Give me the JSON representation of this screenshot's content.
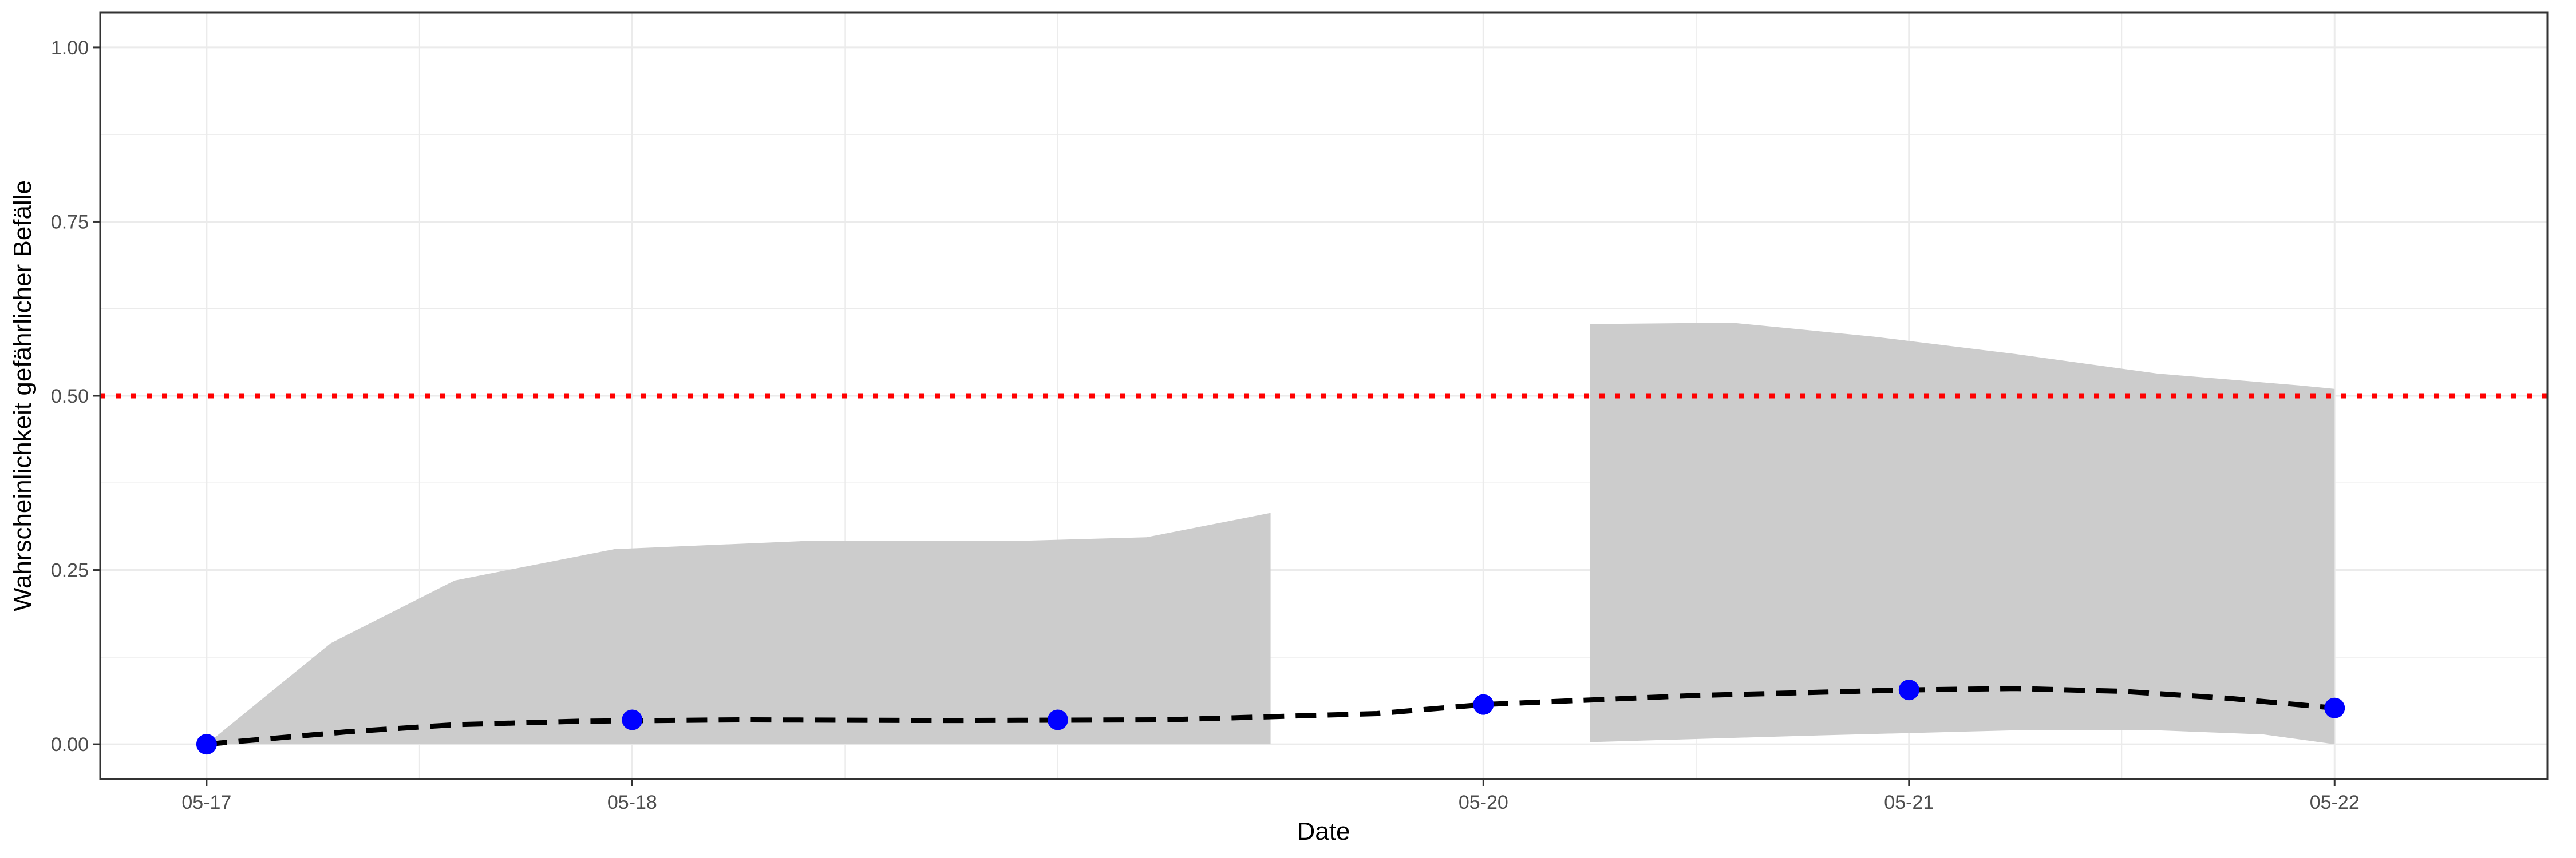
{
  "chart_data": {
    "type": "line",
    "title": "",
    "xlabel": "Date",
    "ylabel": "Wahrscheinlichkeit gefährlicher Befälle",
    "xlim": [
      "2023-05-16T18:00",
      "2023-05-22T12:00"
    ],
    "ylim": [
      -0.05,
      1.05
    ],
    "x_ticks": [
      {
        "x": "2023-05-17",
        "label": "05-17"
      },
      {
        "x": "2023-05-18",
        "label": "05-18"
      },
      {
        "x": "2023-05-20",
        "label": "05-20"
      },
      {
        "x": "2023-05-21",
        "label": "05-21"
      },
      {
        "x": "2023-05-22",
        "label": "05-22"
      }
    ],
    "x_minor_grid": [
      "2023-05-17T12:00",
      "2023-05-18T12:00",
      "2023-05-19T00:00",
      "2023-05-20T12:00",
      "2023-05-21T12:00"
    ],
    "y_ticks": [
      {
        "y": 0.0,
        "label": "0.00"
      },
      {
        "y": 0.25,
        "label": "0.25"
      },
      {
        "y": 0.5,
        "label": "0.50"
      },
      {
        "y": 0.75,
        "label": "0.75"
      },
      {
        "y": 1.0,
        "label": "1.00"
      }
    ],
    "y_minor_grid": [
      0.125,
      0.375,
      0.625,
      0.875
    ],
    "grid": true,
    "colors": {
      "points": "#0000ff",
      "smooth_line": "#000000",
      "ribbon": "#cccccc",
      "threshold": "#ff0000",
      "grid": "#ebebeb",
      "panel_border": "#333333"
    },
    "points": [
      {
        "x": "2023-05-17",
        "y": 0.0
      },
      {
        "x": "2023-05-18",
        "y": 0.035
      },
      {
        "x": "2023-05-19",
        "y": 0.035
      },
      {
        "x": "2023-05-20",
        "y": 0.057
      },
      {
        "x": "2023-05-21",
        "y": 0.078
      },
      {
        "x": "2023-05-22",
        "y": 0.052
      }
    ],
    "smooth_line": [
      {
        "x": "2023-05-17T00:00",
        "y": 0.0
      },
      {
        "x": "2023-05-17T08:00",
        "y": 0.018
      },
      {
        "x": "2023-05-17T14:00",
        "y": 0.028
      },
      {
        "x": "2023-05-17T21:00",
        "y": 0.033
      },
      {
        "x": "2023-05-18T06:00",
        "y": 0.035
      },
      {
        "x": "2023-05-18T18:00",
        "y": 0.034
      },
      {
        "x": "2023-05-19T06:00",
        "y": 0.035
      },
      {
        "x": "2023-05-19T18:00",
        "y": 0.044
      },
      {
        "x": "2023-05-20T00:00",
        "y": 0.057
      },
      {
        "x": "2023-05-20T12:00",
        "y": 0.07
      },
      {
        "x": "2023-05-21T00:00",
        "y": 0.078
      },
      {
        "x": "2023-05-21T06:00",
        "y": 0.08
      },
      {
        "x": "2023-05-21T12:00",
        "y": 0.076
      },
      {
        "x": "2023-05-21T18:00",
        "y": 0.066
      },
      {
        "x": "2023-05-22T00:00",
        "y": 0.052
      }
    ],
    "ribbons": [
      {
        "upper": [
          {
            "x": "2023-05-17T00:00",
            "y": 0.0
          },
          {
            "x": "2023-05-17T07:00",
            "y": 0.145
          },
          {
            "x": "2023-05-17T14:00",
            "y": 0.235
          },
          {
            "x": "2023-05-17T23:00",
            "y": 0.28
          },
          {
            "x": "2023-05-18T10:00",
            "y": 0.292
          },
          {
            "x": "2023-05-18T22:00",
            "y": 0.292
          },
          {
            "x": "2023-05-19T05:00",
            "y": 0.297
          },
          {
            "x": "2023-05-19T12:00",
            "y": 0.332
          }
        ],
        "lower": [
          {
            "x": "2023-05-17T00:00",
            "y": 0.0
          },
          {
            "x": "2023-05-18T00:00",
            "y": 0.0
          },
          {
            "x": "2023-05-19T12:00",
            "y": 0.0
          }
        ]
      },
      {
        "upper": [
          {
            "x": "2023-05-20T06:00",
            "y": 0.603
          },
          {
            "x": "2023-05-20T14:00",
            "y": 0.605
          },
          {
            "x": "2023-05-20T22:00",
            "y": 0.585
          },
          {
            "x": "2023-05-21T06:00",
            "y": 0.56
          },
          {
            "x": "2023-05-21T14:00",
            "y": 0.532
          },
          {
            "x": "2023-05-21T22:00",
            "y": 0.515
          },
          {
            "x": "2023-05-22T00:00",
            "y": 0.51
          }
        ],
        "lower": [
          {
            "x": "2023-05-20T06:00",
            "y": 0.003
          },
          {
            "x": "2023-05-20T18:00",
            "y": 0.012
          },
          {
            "x": "2023-05-21T06:00",
            "y": 0.02
          },
          {
            "x": "2023-05-21T14:00",
            "y": 0.02
          },
          {
            "x": "2023-05-21T20:00",
            "y": 0.014
          },
          {
            "x": "2023-05-22T00:00",
            "y": 0.0
          }
        ]
      }
    ],
    "threshold": {
      "y": 0.5
    }
  }
}
